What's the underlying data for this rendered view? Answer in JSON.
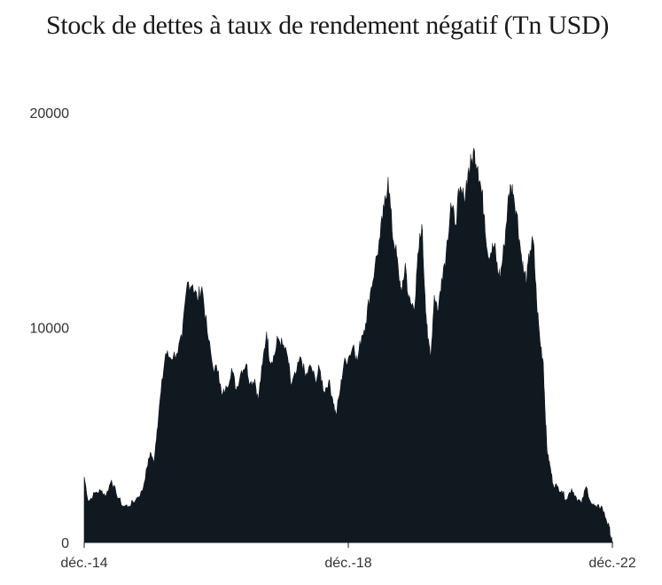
{
  "title": "Stock de dettes à taux de rendement négatif (Tn USD)",
  "colors": {
    "area": "#101820",
    "axis": "#1a1a1a",
    "text": "#333333"
  },
  "chart_data": {
    "type": "area",
    "title": "Stock de dettes à taux de rendement négatif (Tn USD)",
    "xlabel": "",
    "ylabel": "",
    "ylim": [
      0,
      20000
    ],
    "xlim": [
      2014.917,
      2022.917
    ],
    "grid": false,
    "x_ticks": [
      {
        "x": 2014.917,
        "label": "déc.-14"
      },
      {
        "x": 2018.917,
        "label": "déc.-18"
      },
      {
        "x": 2022.917,
        "label": "déc.-22"
      }
    ],
    "y_ticks": [
      {
        "y": 0,
        "label": "0"
      },
      {
        "y": 10000,
        "label": "10000"
      },
      {
        "y": 20000,
        "label": "20000"
      }
    ],
    "series": [
      {
        "name": "",
        "points": [
          [
            2014.917,
            3050
          ],
          [
            2014.98,
            1900
          ],
          [
            2015.08,
            2300
          ],
          [
            2015.17,
            2400
          ],
          [
            2015.25,
            2200
          ],
          [
            2015.33,
            2900
          ],
          [
            2015.4,
            2300
          ],
          [
            2015.5,
            1700
          ],
          [
            2015.6,
            1700
          ],
          [
            2015.7,
            2000
          ],
          [
            2015.8,
            2400
          ],
          [
            2015.87,
            3500
          ],
          [
            2015.92,
            4200
          ],
          [
            2015.97,
            3700
          ],
          [
            2016.02,
            5200
          ],
          [
            2016.08,
            7000
          ],
          [
            2016.15,
            8800
          ],
          [
            2016.22,
            8600
          ],
          [
            2016.32,
            8800
          ],
          [
            2016.4,
            9500
          ],
          [
            2016.48,
            12100
          ],
          [
            2016.56,
            12000
          ],
          [
            2016.63,
            11300
          ],
          [
            2016.7,
            11900
          ],
          [
            2016.78,
            9800
          ],
          [
            2016.87,
            8100
          ],
          [
            2016.95,
            8000
          ],
          [
            2017.0,
            6800
          ],
          [
            2017.08,
            7200
          ],
          [
            2017.15,
            8100
          ],
          [
            2017.22,
            7100
          ],
          [
            2017.3,
            8000
          ],
          [
            2017.37,
            8300
          ],
          [
            2017.43,
            7400
          ],
          [
            2017.5,
            7600
          ],
          [
            2017.55,
            6600
          ],
          [
            2017.62,
            8300
          ],
          [
            2017.68,
            9800
          ],
          [
            2017.73,
            8400
          ],
          [
            2017.8,
            8700
          ],
          [
            2017.85,
            9500
          ],
          [
            2017.92,
            9200
          ],
          [
            2018.0,
            8600
          ],
          [
            2018.05,
            7300
          ],
          [
            2018.12,
            7800
          ],
          [
            2018.2,
            8600
          ],
          [
            2018.27,
            7700
          ],
          [
            2018.35,
            8200
          ],
          [
            2018.42,
            7500
          ],
          [
            2018.48,
            8100
          ],
          [
            2018.55,
            7000
          ],
          [
            2018.62,
            7500
          ],
          [
            2018.68,
            6700
          ],
          [
            2018.73,
            5900
          ],
          [
            2018.8,
            7200
          ],
          [
            2018.85,
            8300
          ],
          [
            2018.92,
            8600
          ],
          [
            2019.0,
            9200
          ],
          [
            2019.05,
            8400
          ],
          [
            2019.12,
            9600
          ],
          [
            2019.18,
            10200
          ],
          [
            2019.25,
            11600
          ],
          [
            2019.32,
            12800
          ],
          [
            2019.4,
            14200
          ],
          [
            2019.46,
            15500
          ],
          [
            2019.52,
            17000
          ],
          [
            2019.58,
            14500
          ],
          [
            2019.63,
            13700
          ],
          [
            2019.68,
            12500
          ],
          [
            2019.73,
            11500
          ],
          [
            2019.78,
            13000
          ],
          [
            2019.83,
            11300
          ],
          [
            2019.88,
            11000
          ],
          [
            2019.93,
            11200
          ],
          [
            2019.98,
            13500
          ],
          [
            2020.03,
            14800
          ],
          [
            2020.08,
            11500
          ],
          [
            2020.12,
            9400
          ],
          [
            2020.17,
            8800
          ],
          [
            2020.22,
            11500
          ],
          [
            2020.28,
            10800
          ],
          [
            2020.33,
            12300
          ],
          [
            2020.4,
            13500
          ],
          [
            2020.47,
            15800
          ],
          [
            2020.53,
            14800
          ],
          [
            2020.6,
            16200
          ],
          [
            2020.67,
            16000
          ],
          [
            2020.73,
            17200
          ],
          [
            2020.78,
            17600
          ],
          [
            2020.83,
            18200
          ],
          [
            2020.88,
            17500
          ],
          [
            2020.93,
            16400
          ],
          [
            2020.98,
            15200
          ],
          [
            2021.03,
            13400
          ],
          [
            2021.08,
            13500
          ],
          [
            2021.13,
            13800
          ],
          [
            2021.18,
            12600
          ],
          [
            2021.22,
            12400
          ],
          [
            2021.28,
            13800
          ],
          [
            2021.33,
            15600
          ],
          [
            2021.38,
            16600
          ],
          [
            2021.42,
            16200
          ],
          [
            2021.47,
            15300
          ],
          [
            2021.52,
            13800
          ],
          [
            2021.57,
            12600
          ],
          [
            2021.62,
            12200
          ],
          [
            2021.67,
            13600
          ],
          [
            2021.72,
            14000
          ],
          [
            2021.77,
            11200
          ],
          [
            2021.82,
            9400
          ],
          [
            2021.87,
            8400
          ],
          [
            2021.9,
            6000
          ],
          [
            2021.93,
            4200
          ],
          [
            2021.97,
            3600
          ],
          [
            2022.02,
            2700
          ],
          [
            2022.08,
            2600
          ],
          [
            2022.15,
            2400
          ],
          [
            2022.22,
            2000
          ],
          [
            2022.3,
            2500
          ],
          [
            2022.37,
            2100
          ],
          [
            2022.45,
            1800
          ],
          [
            2022.52,
            2600
          ],
          [
            2022.6,
            1800
          ],
          [
            2022.68,
            1600
          ],
          [
            2022.75,
            1700
          ],
          [
            2022.82,
            1100
          ],
          [
            2022.87,
            700
          ],
          [
            2022.9,
            150
          ],
          [
            2022.917,
            0
          ]
        ]
      }
    ]
  }
}
